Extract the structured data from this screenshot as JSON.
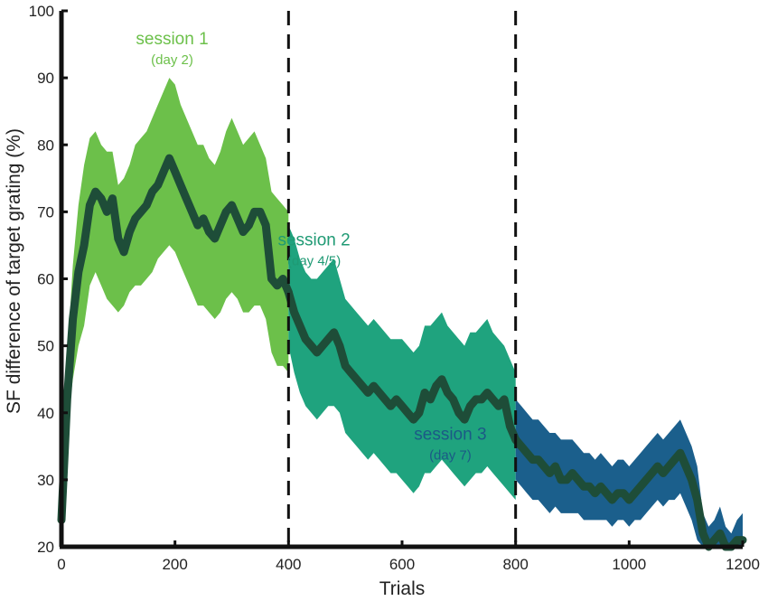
{
  "chart_data": {
    "type": "line",
    "xlabel": "Trials",
    "ylabel": "SF difference of target grating (%)",
    "xlim": [
      0,
      1200
    ],
    "ylim": [
      20,
      100
    ],
    "xticks": [
      0,
      200,
      400,
      600,
      800,
      1000,
      1200
    ],
    "yticks": [
      20,
      30,
      40,
      50,
      60,
      70,
      80,
      90,
      100
    ],
    "session_boundaries": [
      400,
      800
    ],
    "sessions": [
      {
        "label": "session 1",
        "sublabel": "(day 2)",
        "band_color": "#6cc04a",
        "text_color": "#6cc04a",
        "x_range": [
          0,
          400
        ]
      },
      {
        "label": "session 2",
        "sublabel": "(day 4/5)",
        "band_color": "#1fa37e",
        "text_color": "#1f9a74",
        "x_range": [
          400,
          800
        ]
      },
      {
        "label": "session 3",
        "sublabel": "(day 7)",
        "band_color": "#1b5f8c",
        "text_color": "#1b5a86",
        "x_range": [
          800,
          1200
        ]
      }
    ],
    "mean_line_color": "#1e4d38",
    "series": [
      {
        "x": [
          0,
          10,
          20,
          30,
          40,
          50,
          60,
          70,
          80,
          90,
          100,
          110,
          120,
          130,
          140,
          150,
          160,
          170,
          180,
          190,
          200,
          210,
          220,
          230,
          240,
          250,
          260,
          270,
          280,
          290,
          300,
          310,
          320,
          330,
          340,
          350,
          360,
          370,
          380,
          390,
          400
        ],
        "y": [
          24,
          42,
          54,
          61,
          65,
          71,
          73,
          72,
          70,
          72,
          66,
          64,
          67,
          69,
          70,
          71,
          73,
          74,
          76,
          78,
          76,
          74,
          72,
          70,
          68,
          69,
          67,
          66,
          68,
          70,
          71,
          69,
          67,
          68,
          70,
          70,
          68,
          60,
          59,
          60,
          58
        ],
        "lower": [
          24,
          38,
          45,
          50,
          53,
          59,
          61,
          59,
          57,
          56,
          55,
          56,
          58,
          59,
          59,
          60,
          61,
          63,
          64,
          65,
          64,
          62,
          60,
          58,
          56,
          56,
          55,
          54,
          55,
          57,
          58,
          57,
          55,
          55,
          56,
          56,
          54,
          49,
          47,
          47,
          46
        ],
        "upper": [
          26,
          48,
          62,
          71,
          77,
          81,
          82,
          80,
          79,
          79,
          74,
          75,
          77,
          80,
          81,
          82,
          84,
          86,
          88,
          90,
          89,
          86,
          84,
          82,
          80,
          80,
          78,
          77,
          79,
          82,
          84,
          82,
          80,
          81,
          82,
          80,
          78,
          73,
          72,
          71,
          70
        ]
      },
      {
        "x": [
          400,
          410,
          420,
          430,
          440,
          450,
          460,
          470,
          480,
          490,
          500,
          510,
          520,
          530,
          540,
          550,
          560,
          570,
          580,
          590,
          600,
          610,
          620,
          630,
          640,
          650,
          660,
          670,
          680,
          690,
          700,
          710,
          720,
          730,
          740,
          750,
          760,
          770,
          780,
          790,
          800
        ],
        "y": [
          58,
          55,
          53,
          51,
          50,
          49,
          50,
          51,
          52,
          50,
          47,
          46,
          45,
          44,
          43,
          44,
          43,
          42,
          41,
          42,
          41,
          40,
          39,
          40,
          43,
          42,
          44,
          45,
          43,
          42,
          40,
          39,
          41,
          42,
          42,
          43,
          42,
          41,
          42,
          38,
          36
        ],
        "lower": [
          50,
          46,
          43,
          41,
          40,
          39,
          40,
          41,
          41,
          40,
          37,
          36,
          35,
          34,
          33,
          34,
          33,
          32,
          31,
          31,
          30,
          29,
          28,
          29,
          31,
          31,
          32,
          33,
          32,
          31,
          30,
          29,
          30,
          31,
          31,
          32,
          31,
          30,
          29,
          28,
          27
        ],
        "upper": [
          68,
          66,
          63,
          61,
          60,
          60,
          61,
          62,
          63,
          60,
          57,
          56,
          55,
          54,
          53,
          54,
          53,
          52,
          51,
          51,
          51,
          50,
          49,
          50,
          53,
          53,
          54,
          55,
          53,
          52,
          51,
          50,
          52,
          52,
          53,
          54,
          52,
          51,
          50,
          48,
          46
        ]
      },
      {
        "x": [
          800,
          810,
          820,
          830,
          840,
          850,
          860,
          870,
          880,
          890,
          900,
          910,
          920,
          930,
          940,
          950,
          960,
          970,
          980,
          990,
          1000,
          1010,
          1020,
          1030,
          1040,
          1050,
          1060,
          1070,
          1080,
          1090,
          1100,
          1110,
          1120,
          1130,
          1140,
          1150,
          1160,
          1170,
          1180,
          1190,
          1200
        ],
        "y": [
          36,
          35,
          34,
          33,
          33,
          32,
          31,
          32,
          30,
          30,
          31,
          30,
          29,
          29,
          28,
          29,
          28,
          27,
          28,
          28,
          27,
          28,
          29,
          30,
          31,
          32,
          31,
          32,
          33,
          34,
          32,
          30,
          27,
          22,
          20,
          21,
          22,
          20,
          20,
          21,
          21
        ],
        "lower": [
          30,
          29,
          28,
          27,
          27,
          26,
          25,
          26,
          25,
          25,
          25,
          25,
          24,
          24,
          24,
          24,
          24,
          23,
          24,
          24,
          23,
          24,
          24,
          25,
          26,
          27,
          26,
          27,
          27,
          28,
          26,
          24,
          21,
          20,
          20,
          20,
          20,
          20,
          20,
          20,
          20
        ],
        "upper": [
          42,
          41,
          40,
          39,
          39,
          38,
          37,
          37,
          36,
          36,
          36,
          35,
          34,
          34,
          33,
          34,
          33,
          32,
          33,
          33,
          32,
          33,
          34,
          35,
          36,
          37,
          36,
          37,
          38,
          39,
          37,
          35,
          32,
          25,
          23,
          24,
          26,
          23,
          22,
          24,
          25
        ]
      }
    ],
    "grid": false,
    "legend": "none"
  }
}
